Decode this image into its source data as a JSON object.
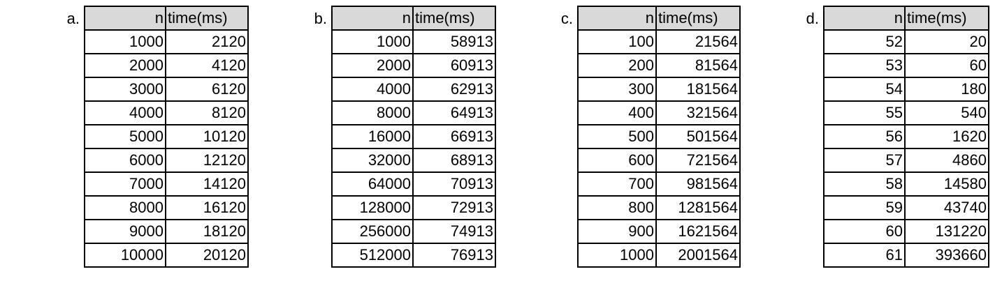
{
  "tables": [
    {
      "label": "a.",
      "headers": [
        "n",
        "time(ms)"
      ],
      "rows": [
        [
          "1000",
          "2120"
        ],
        [
          "2000",
          "4120"
        ],
        [
          "3000",
          "6120"
        ],
        [
          "4000",
          "8120"
        ],
        [
          "5000",
          "10120"
        ],
        [
          "6000",
          "12120"
        ],
        [
          "7000",
          "14120"
        ],
        [
          "8000",
          "16120"
        ],
        [
          "9000",
          "18120"
        ],
        [
          "10000",
          "20120"
        ]
      ]
    },
    {
      "label": "b.",
      "headers": [
        "n",
        "time(ms)"
      ],
      "rows": [
        [
          "1000",
          "58913"
        ],
        [
          "2000",
          "60913"
        ],
        [
          "4000",
          "62913"
        ],
        [
          "8000",
          "64913"
        ],
        [
          "16000",
          "66913"
        ],
        [
          "32000",
          "68913"
        ],
        [
          "64000",
          "70913"
        ],
        [
          "128000",
          "72913"
        ],
        [
          "256000",
          "74913"
        ],
        [
          "512000",
          "76913"
        ]
      ]
    },
    {
      "label": "c.",
      "headers": [
        "n",
        "time(ms)"
      ],
      "rows": [
        [
          "100",
          "21564"
        ],
        [
          "200",
          "81564"
        ],
        [
          "300",
          "181564"
        ],
        [
          "400",
          "321564"
        ],
        [
          "500",
          "501564"
        ],
        [
          "600",
          "721564"
        ],
        [
          "700",
          "981564"
        ],
        [
          "800",
          "1281564"
        ],
        [
          "900",
          "1621564"
        ],
        [
          "1000",
          "2001564"
        ]
      ]
    },
    {
      "label": "d.",
      "headers": [
        "n",
        "time(ms)"
      ],
      "rows": [
        [
          "52",
          "20"
        ],
        [
          "53",
          "60"
        ],
        [
          "54",
          "180"
        ],
        [
          "55",
          "540"
        ],
        [
          "56",
          "1620"
        ],
        [
          "57",
          "4860"
        ],
        [
          "58",
          "14580"
        ],
        [
          "59",
          "43740"
        ],
        [
          "60",
          "131220"
        ],
        [
          "61",
          "393660"
        ]
      ]
    }
  ]
}
